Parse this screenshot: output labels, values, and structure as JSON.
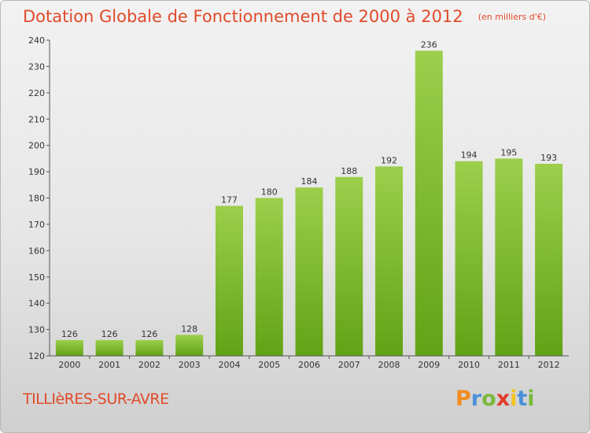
{
  "chart_data": {
    "type": "bar",
    "title": "Dotation Globale de Fonctionnement de 2000 à 2012",
    "unit": "(en milliers d'€)",
    "categories": [
      "2000",
      "2001",
      "2002",
      "2003",
      "2004",
      "2005",
      "2006",
      "2007",
      "2008",
      "2009",
      "2010",
      "2011",
      "2012"
    ],
    "values": [
      126,
      126,
      126,
      128,
      177,
      180,
      184,
      188,
      192,
      236,
      194,
      195,
      193
    ],
    "ylim": [
      120,
      240
    ],
    "yticks": [
      120,
      130,
      140,
      150,
      160,
      170,
      180,
      190,
      200,
      210,
      220,
      230,
      240
    ],
    "grid": false,
    "bar_color_top": "#9ccf4c",
    "bar_color_bottom": "#62a216"
  },
  "footer": {
    "commune": "TILLIèRES-SUR-AVRE",
    "logo": "Proxiti",
    "logo_colors": [
      "#f28c1e",
      "#4a90d9",
      "#7ab83a",
      "#e23c2a",
      "#f2c31e",
      "#4a90d9",
      "#7ab83a"
    ]
  }
}
